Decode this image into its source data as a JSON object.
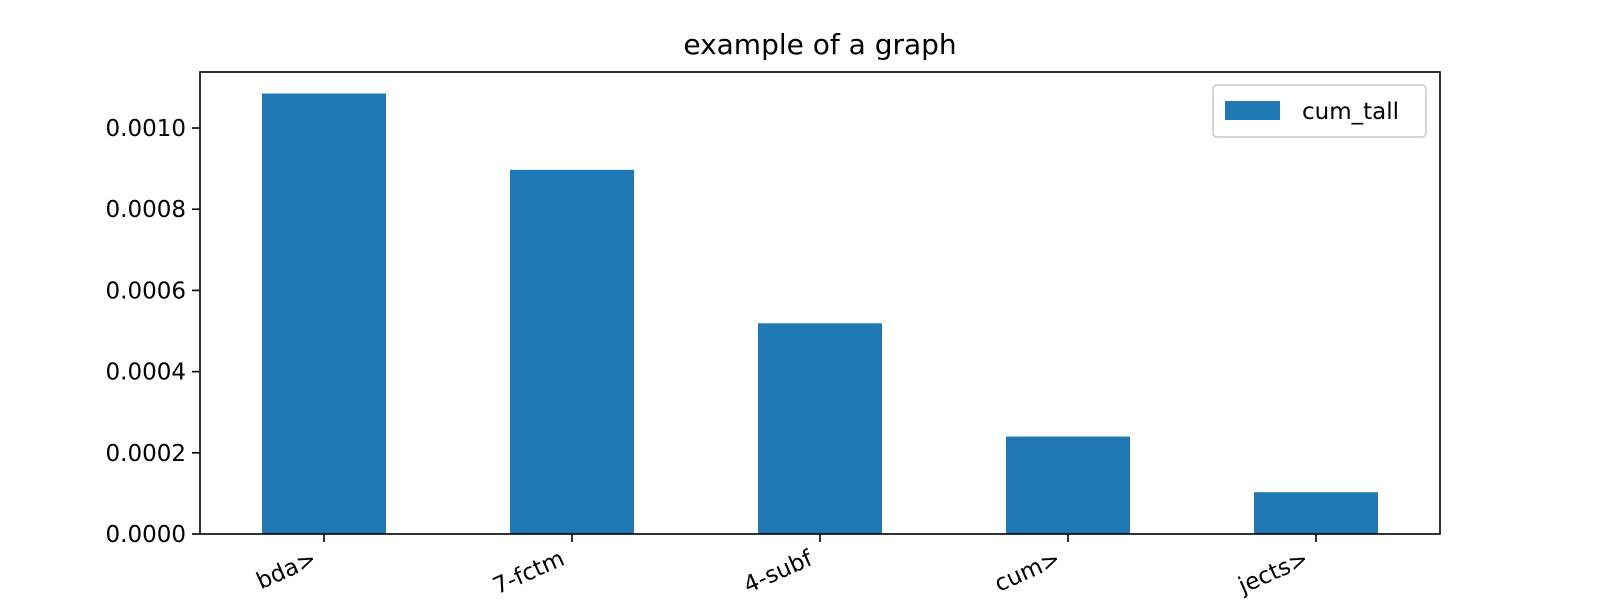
{
  "chart_data": {
    "type": "bar",
    "title": "example of a graph",
    "xlabel": "",
    "ylabel": "",
    "categories": [
      "bda>",
      "7-fctm",
      "4-subf",
      "cum>",
      "jects>"
    ],
    "series": [
      {
        "name": "cum_tall",
        "values": [
          0.001085,
          0.000897,
          0.000519,
          0.00024,
          0.000103
        ]
      }
    ],
    "ylim": [
      0,
      0.001138
    ],
    "yticks": [
      0.0,
      0.0002,
      0.0004,
      0.0006,
      0.0008,
      0.001
    ],
    "ytick_labels": [
      "0.0000",
      "0.0002",
      "0.0004",
      "0.0006",
      "0.0008",
      "0.0010"
    ],
    "grid": false,
    "legend_position": "upper right",
    "bar_color": "#1f77b4"
  }
}
